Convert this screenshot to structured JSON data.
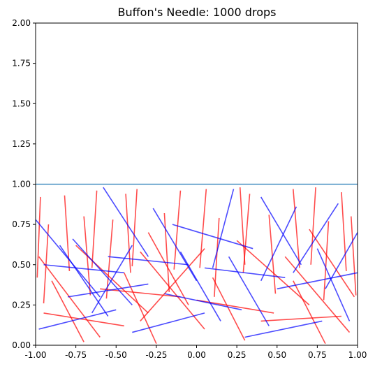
{
  "chart_data": {
    "type": "line",
    "title": "Buffon's Needle: 1000 drops",
    "xlabel": "",
    "ylabel": "",
    "xlim": [
      -1.0,
      1.0
    ],
    "ylim": [
      0.0,
      2.0
    ],
    "x_ticks": [
      "-1.00",
      "-0.75",
      "-0.50",
      "-0.25",
      "0.00",
      "0.25",
      "0.50",
      "0.75",
      "1.00"
    ],
    "x_tick_values": [
      -1.0,
      -0.75,
      -0.5,
      -0.25,
      0.0,
      0.25,
      0.5,
      0.75,
      1.0
    ],
    "y_ticks": [
      "0.00",
      "0.25",
      "0.50",
      "0.75",
      "1.00",
      "1.25",
      "1.50",
      "1.75",
      "2.00"
    ],
    "y_tick_values": [
      0.0,
      0.25,
      0.5,
      0.75,
      1.0,
      1.25,
      1.5,
      1.75,
      2.0
    ],
    "grid": false,
    "reference_line": {
      "y": 1.0,
      "color": "#1f77b4"
    },
    "drops": 1000,
    "series": [
      {
        "color": "#ff0000",
        "segments": [
          [
            [
              -0.97,
              0.92
            ],
            [
              -0.99,
              0.42
            ]
          ],
          [
            [
              -0.82,
              0.93
            ],
            [
              -0.79,
              0.46
            ]
          ],
          [
            [
              -0.62,
              0.96
            ],
            [
              -0.65,
              0.48
            ]
          ],
          [
            [
              -0.44,
              0.94
            ],
            [
              -0.41,
              0.45
            ]
          ],
          [
            [
              -0.37,
              0.97
            ],
            [
              -0.4,
              0.49
            ]
          ],
          [
            [
              -0.1,
              0.96
            ],
            [
              -0.14,
              0.47
            ]
          ],
          [
            [
              0.06,
              0.97
            ],
            [
              0.02,
              0.48
            ]
          ],
          [
            [
              0.27,
              0.98
            ],
            [
              0.3,
              0.5
            ]
          ],
          [
            [
              0.33,
              0.94
            ],
            [
              0.29,
              0.45
            ]
          ],
          [
            [
              0.6,
              0.97
            ],
            [
              0.64,
              0.48
            ]
          ],
          [
            [
              0.74,
              0.98
            ],
            [
              0.71,
              0.5
            ]
          ],
          [
            [
              0.9,
              0.95
            ],
            [
              0.93,
              0.46
            ]
          ],
          [
            [
              -0.92,
              0.75
            ],
            [
              -0.95,
              0.26
            ]
          ],
          [
            [
              -0.7,
              0.8
            ],
            [
              -0.66,
              0.31
            ]
          ],
          [
            [
              -0.52,
              0.78
            ],
            [
              -0.56,
              0.29
            ]
          ],
          [
            [
              -0.2,
              0.82
            ],
            [
              -0.17,
              0.33
            ]
          ],
          [
            [
              0.14,
              0.79
            ],
            [
              0.11,
              0.3
            ]
          ],
          [
            [
              0.45,
              0.81
            ],
            [
              0.49,
              0.32
            ]
          ],
          [
            [
              0.82,
              0.77
            ],
            [
              0.79,
              0.28
            ]
          ],
          [
            [
              0.96,
              0.8
            ],
            [
              0.99,
              0.31
            ]
          ],
          [
            [
              -0.98,
              0.55
            ],
            [
              -0.6,
              0.05
            ]
          ],
          [
            [
              -0.75,
              0.62
            ],
            [
              -0.3,
              0.2
            ]
          ],
          [
            [
              -0.35,
              0.58
            ],
            [
              0.05,
              0.1
            ]
          ],
          [
            [
              0.05,
              0.6
            ],
            [
              -0.35,
              0.15
            ]
          ],
          [
            [
              0.25,
              0.65
            ],
            [
              0.7,
              0.25
            ]
          ],
          [
            [
              0.55,
              0.55
            ],
            [
              0.95,
              0.08
            ]
          ],
          [
            [
              -0.9,
              0.4
            ],
            [
              -0.7,
              0.02
            ]
          ],
          [
            [
              -0.45,
              0.45
            ],
            [
              -0.25,
              0.01
            ]
          ],
          [
            [
              0.1,
              0.42
            ],
            [
              0.3,
              0.03
            ]
          ],
          [
            [
              0.6,
              0.4
            ],
            [
              0.8,
              0.01
            ]
          ],
          [
            [
              -0.6,
              0.35
            ],
            [
              -0.1,
              0.3
            ]
          ],
          [
            [
              0.0,
              0.28
            ],
            [
              0.48,
              0.2
            ]
          ],
          [
            [
              0.4,
              0.15
            ],
            [
              0.9,
              0.18
            ]
          ],
          [
            [
              -0.95,
              0.2
            ],
            [
              -0.45,
              0.12
            ]
          ],
          [
            [
              -0.3,
              0.7
            ],
            [
              -0.05,
              0.25
            ]
          ],
          [
            [
              0.7,
              0.72
            ],
            [
              0.98,
              0.3
            ]
          ]
        ]
      },
      {
        "color": "#0000ff",
        "segments": [
          [
            [
              -1.0,
              0.78
            ],
            [
              -0.6,
              0.3
            ]
          ],
          [
            [
              -0.77,
              0.66
            ],
            [
              -0.4,
              0.25
            ]
          ],
          [
            [
              -0.58,
              0.98
            ],
            [
              -0.3,
              0.55
            ]
          ],
          [
            [
              -0.27,
              0.85
            ],
            [
              0.0,
              0.4
            ]
          ],
          [
            [
              -0.15,
              0.75
            ],
            [
              0.35,
              0.6
            ]
          ],
          [
            [
              0.23,
              0.97
            ],
            [
              0.1,
              0.48
            ]
          ],
          [
            [
              0.4,
              0.92
            ],
            [
              0.65,
              0.5
            ]
          ],
          [
            [
              0.62,
              0.86
            ],
            [
              0.4,
              0.4
            ]
          ],
          [
            [
              0.88,
              0.88
            ],
            [
              0.6,
              0.45
            ]
          ],
          [
            [
              -0.95,
              0.5
            ],
            [
              -0.45,
              0.45
            ]
          ],
          [
            [
              -0.55,
              0.55
            ],
            [
              -0.05,
              0.5
            ]
          ],
          [
            [
              0.05,
              0.48
            ],
            [
              0.55,
              0.42
            ]
          ],
          [
            [
              0.5,
              0.35
            ],
            [
              1.0,
              0.45
            ]
          ],
          [
            [
              -0.8,
              0.3
            ],
            [
              -0.3,
              0.38
            ]
          ],
          [
            [
              -0.2,
              0.32
            ],
            [
              0.28,
              0.22
            ]
          ],
          [
            [
              0.2,
              0.55
            ],
            [
              0.45,
              0.12
            ]
          ],
          [
            [
              -0.65,
              0.2
            ],
            [
              -0.4,
              0.62
            ]
          ],
          [
            [
              0.75,
              0.6
            ],
            [
              0.95,
              0.15
            ]
          ],
          [
            [
              -0.98,
              0.1
            ],
            [
              -0.5,
              0.22
            ]
          ],
          [
            [
              0.3,
              0.05
            ],
            [
              0.78,
              0.15
            ]
          ],
          [
            [
              -0.4,
              0.08
            ],
            [
              0.05,
              0.2
            ]
          ],
          [
            [
              0.8,
              0.35
            ],
            [
              1.0,
              0.7
            ]
          ],
          [
            [
              -0.1,
              0.58
            ],
            [
              0.15,
              0.15
            ]
          ],
          [
            [
              -0.85,
              0.62
            ],
            [
              -0.55,
              0.18
            ]
          ]
        ]
      }
    ]
  }
}
